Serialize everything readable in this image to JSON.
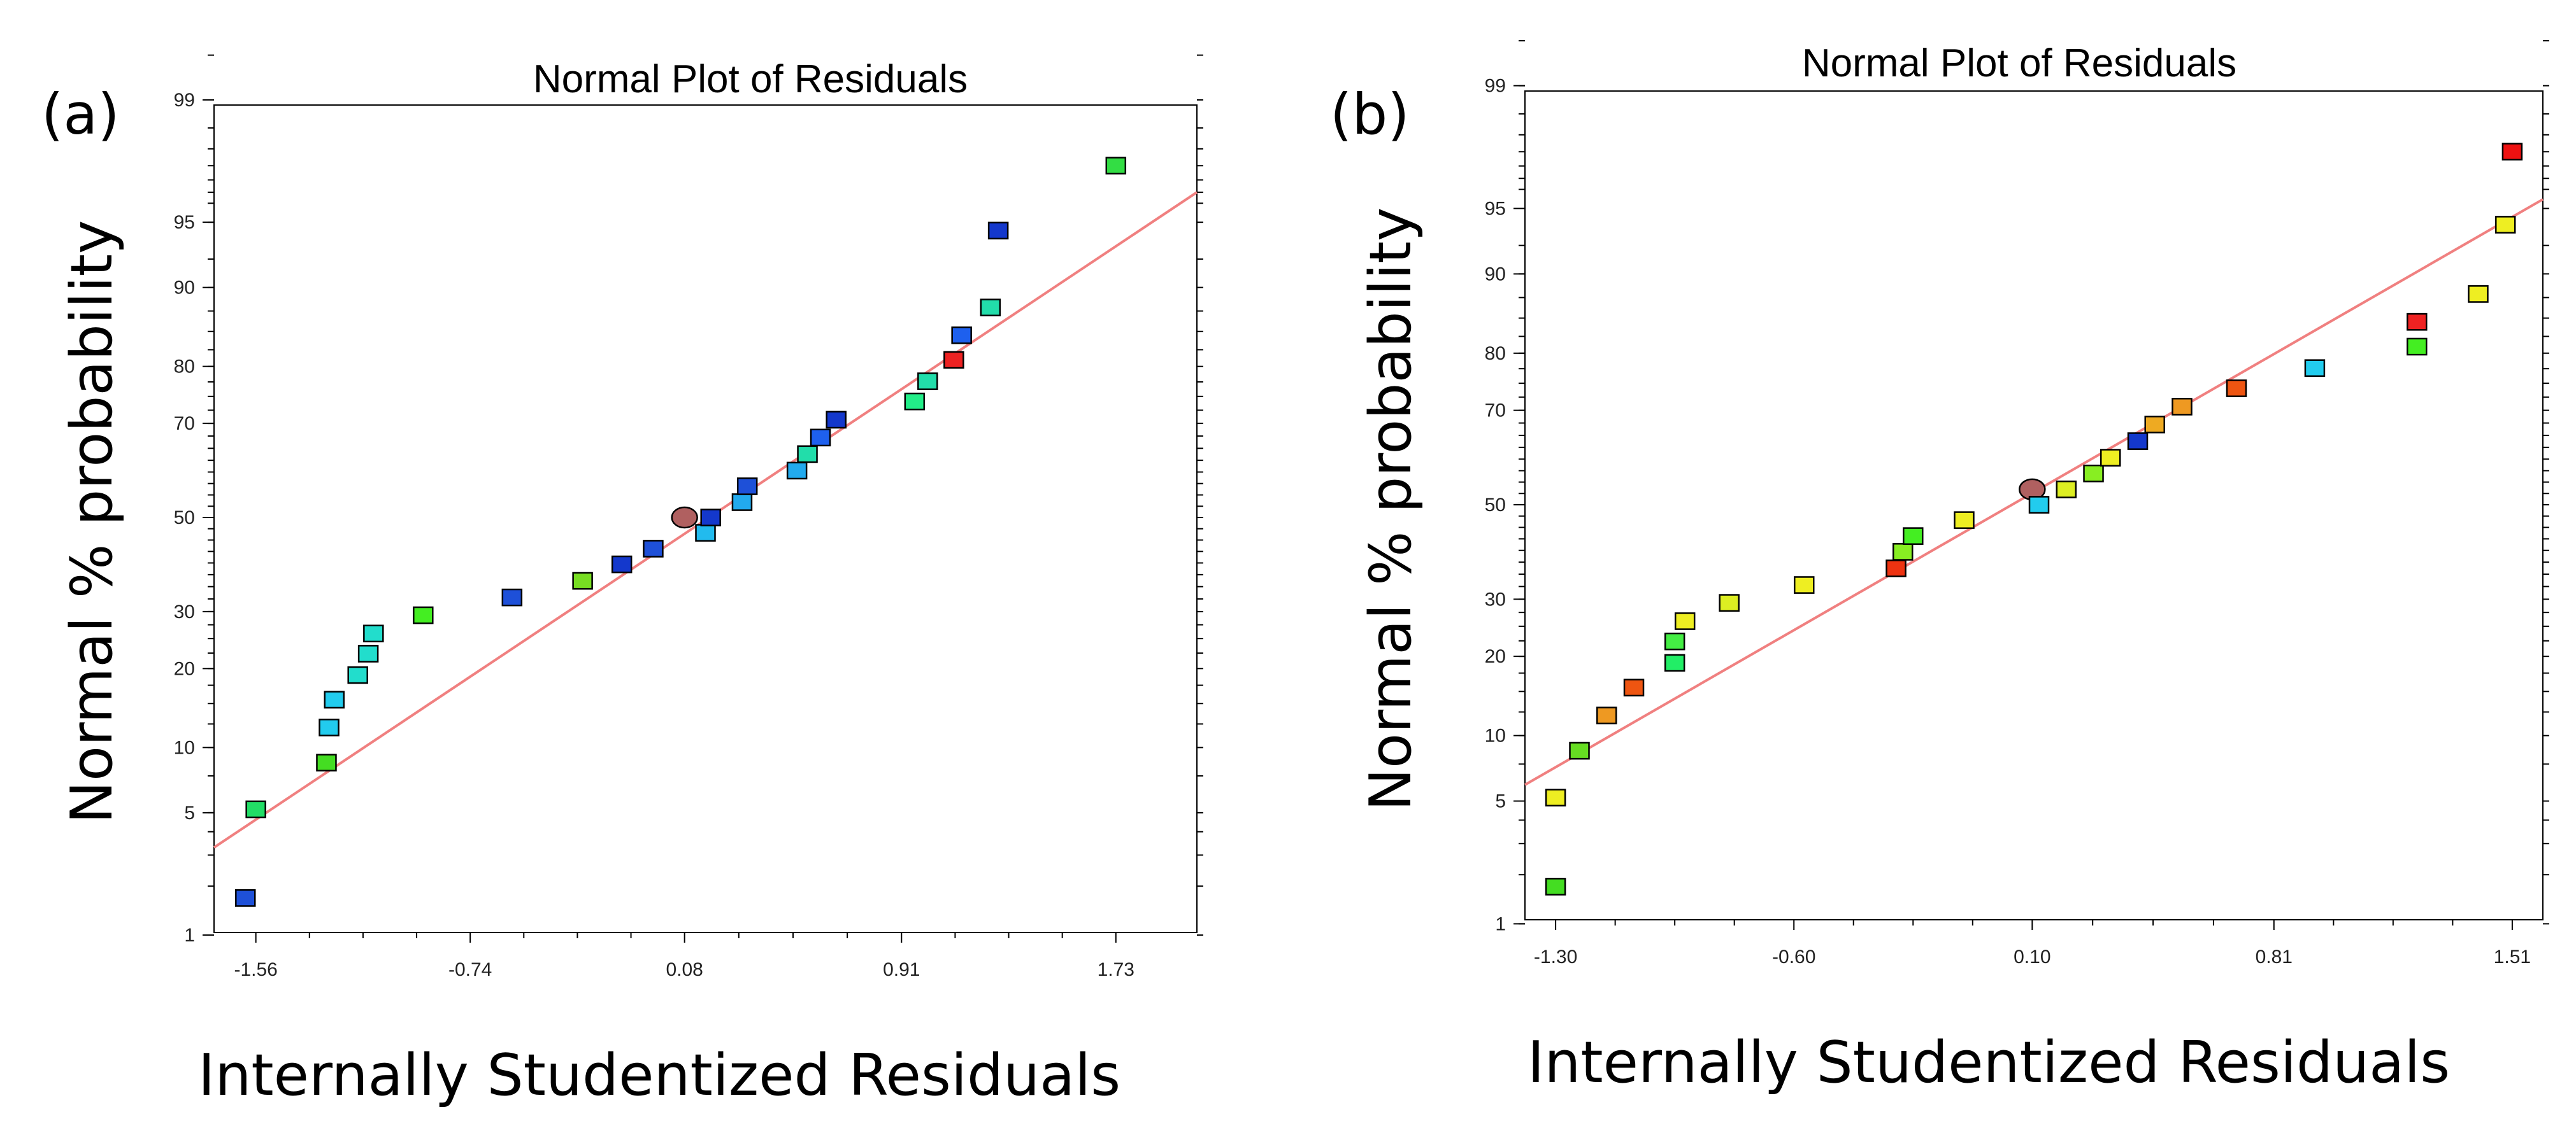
{
  "chart_data": [
    {
      "type": "scatter",
      "panel_label": "(a)",
      "title": "Normal Plot of Residuals",
      "xlabel": "Internally Studentized Residuals",
      "ylabel": "Normal % probability",
      "xlim": [
        -1.72,
        2.04
      ],
      "x_ticks": [
        "-1.56",
        "-0.74",
        "0.08",
        "0.91",
        "1.73"
      ],
      "y_ticks": [
        "1",
        "5",
        "10",
        "20",
        "30",
        "50",
        "70",
        "80",
        "90",
        "95",
        "99"
      ],
      "grid": false,
      "fit_line": {
        "x1": -1.72,
        "p1": 3.3,
        "x2": 2.04,
        "p2": 96.5
      },
      "points": [
        {
          "x": -1.6,
          "p": 1.7,
          "color": "#1e50d8"
        },
        {
          "x": -1.56,
          "p": 5.2,
          "color": "#22dd66"
        },
        {
          "x": -1.29,
          "p": 8.6,
          "color": "#44dd22"
        },
        {
          "x": -1.28,
          "p": 12.1,
          "color": "#22ccee"
        },
        {
          "x": -1.26,
          "p": 15.5,
          "color": "#22ccee"
        },
        {
          "x": -1.17,
          "p": 19.0,
          "color": "#22ddcc"
        },
        {
          "x": -1.13,
          "p": 22.4,
          "color": "#22ddcc"
        },
        {
          "x": -1.11,
          "p": 25.9,
          "color": "#22ddcc"
        },
        {
          "x": -0.92,
          "p": 29.3,
          "color": "#44ee22"
        },
        {
          "x": -0.58,
          "p": 32.8,
          "color": "#1e50d8"
        },
        {
          "x": -0.31,
          "p": 36.2,
          "color": "#77dd22"
        },
        {
          "x": -0.16,
          "p": 39.7,
          "color": "#1438cc"
        },
        {
          "x": -0.04,
          "p": 43.1,
          "color": "#1e50d8"
        },
        {
          "x": 0.08,
          "p": 50.0,
          "color": "#b06060",
          "marker": "circle"
        },
        {
          "x": 0.16,
          "p": 46.6,
          "color": "#22bbee"
        },
        {
          "x": 0.18,
          "p": 50.0,
          "color": "#1438cc"
        },
        {
          "x": 0.3,
          "p": 53.4,
          "color": "#22aaee"
        },
        {
          "x": 0.32,
          "p": 56.9,
          "color": "#1e50d8"
        },
        {
          "x": 0.51,
          "p": 60.3,
          "color": "#22aaee"
        },
        {
          "x": 0.55,
          "p": 63.8,
          "color": "#22ddaa"
        },
        {
          "x": 0.6,
          "p": 67.2,
          "color": "#1e60ee"
        },
        {
          "x": 0.66,
          "p": 70.7,
          "color": "#1438cc"
        },
        {
          "x": 0.96,
          "p": 74.1,
          "color": "#22ee88"
        },
        {
          "x": 1.01,
          "p": 77.6,
          "color": "#22ddaa"
        },
        {
          "x": 1.11,
          "p": 81.0,
          "color": "#ee2222"
        },
        {
          "x": 1.14,
          "p": 84.5,
          "color": "#1e60ee"
        },
        {
          "x": 1.25,
          "p": 87.9,
          "color": "#22ddaa"
        },
        {
          "x": 1.28,
          "p": 94.5,
          "color": "#1438cc"
        },
        {
          "x": 1.73,
          "p": 97.5,
          "color": "#33dd44"
        }
      ]
    },
    {
      "type": "scatter",
      "panel_label": "(b)",
      "title": "Normal Plot of Residuals",
      "xlabel": "Internally Studentized Residuals",
      "ylabel": "Normal % probability",
      "xlim": [
        -1.39,
        1.6
      ],
      "x_ticks": [
        "-1.30",
        "-0.60",
        "0.10",
        "0.81",
        "1.51"
      ],
      "y_ticks": [
        "1",
        "5",
        "10",
        "20",
        "30",
        "50",
        "70",
        "80",
        "90",
        "95",
        "99"
      ],
      "grid": false,
      "fit_line": {
        "x1": -1.39,
        "p1": 6.0,
        "x2": 1.6,
        "p2": 95.5
      },
      "points": [
        {
          "x": -1.3,
          "p": 1.7,
          "color": "#44dd22"
        },
        {
          "x": -1.3,
          "p": 5.2,
          "color": "#eeee22"
        },
        {
          "x": -1.23,
          "p": 8.6,
          "color": "#66dd22"
        },
        {
          "x": -1.15,
          "p": 12.1,
          "color": "#ee9922"
        },
        {
          "x": -1.07,
          "p": 15.5,
          "color": "#ee5511"
        },
        {
          "x": -0.95,
          "p": 19.0,
          "color": "#22ee66"
        },
        {
          "x": -0.95,
          "p": 22.4,
          "color": "#44ee44"
        },
        {
          "x": -0.92,
          "p": 25.9,
          "color": "#eeee22"
        },
        {
          "x": -0.79,
          "p": 29.3,
          "color": "#ddee22"
        },
        {
          "x": -0.57,
          "p": 32.8,
          "color": "#eeee22"
        },
        {
          "x": -0.3,
          "p": 36.2,
          "color": "#ee3311"
        },
        {
          "x": -0.28,
          "p": 39.7,
          "color": "#88ee22"
        },
        {
          "x": -0.25,
          "p": 43.1,
          "color": "#44ee22"
        },
        {
          "x": -0.1,
          "p": 46.6,
          "color": "#eeee22"
        },
        {
          "x": 0.1,
          "p": 53.4,
          "color": "#b06060",
          "marker": "circle"
        },
        {
          "x": 0.12,
          "p": 50.0,
          "color": "#22ccee"
        },
        {
          "x": 0.2,
          "p": 53.4,
          "color": "#ddee22"
        },
        {
          "x": 0.28,
          "p": 56.9,
          "color": "#88ee22"
        },
        {
          "x": 0.33,
          "p": 60.3,
          "color": "#eeee22"
        },
        {
          "x": 0.41,
          "p": 63.8,
          "color": "#1438cc"
        },
        {
          "x": 0.46,
          "p": 67.2,
          "color": "#eeaa22"
        },
        {
          "x": 0.54,
          "p": 70.7,
          "color": "#ee9922"
        },
        {
          "x": 0.7,
          "p": 74.1,
          "color": "#ee5511"
        },
        {
          "x": 0.93,
          "p": 77.6,
          "color": "#22ccee"
        },
        {
          "x": 1.23,
          "p": 81.0,
          "color": "#44ee22"
        },
        {
          "x": 1.23,
          "p": 84.5,
          "color": "#ee2222"
        },
        {
          "x": 1.41,
          "p": 87.9,
          "color": "#eeee22"
        },
        {
          "x": 1.49,
          "p": 94.0,
          "color": "#eeee22"
        },
        {
          "x": 1.51,
          "p": 97.5,
          "color": "#ee1111"
        }
      ]
    }
  ]
}
